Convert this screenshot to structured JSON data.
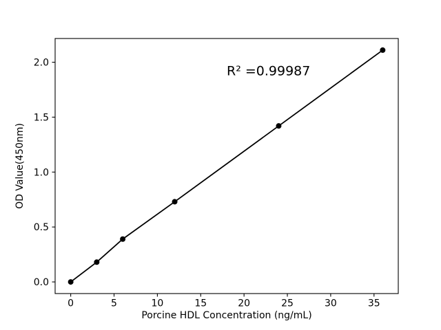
{
  "chart_data": {
    "type": "scatter",
    "title": "",
    "xlabel": "Porcine HDL Concentration (ng/mL)",
    "ylabel": "OD Value(450nm)",
    "x": [
      0,
      3,
      6,
      12,
      24,
      36
    ],
    "y": [
      0.0,
      0.18,
      0.39,
      0.73,
      1.42,
      2.11
    ],
    "series_style": "line-with-markers",
    "xticks": [
      0,
      5,
      10,
      15,
      20,
      25,
      30,
      35
    ],
    "xtick_labels": [
      "0",
      "5",
      "10",
      "15",
      "20",
      "25",
      "30",
      "35"
    ],
    "yticks": [
      0.0,
      0.5,
      1.0,
      1.5,
      2.0
    ],
    "ytick_labels": [
      "0.0",
      "0.5",
      "1.0",
      "1.5",
      "2.0"
    ],
    "xlim": [
      -1.8,
      37.8
    ],
    "ylim": [
      -0.106,
      2.216
    ],
    "grid": false,
    "legend": null,
    "annotation": {
      "text": "R² =0.99987",
      "x": 18,
      "y": 1.88
    },
    "line_color": "#000000",
    "marker_color": "#000000",
    "axis_color": "#000000",
    "background_color": "#ffffff"
  }
}
